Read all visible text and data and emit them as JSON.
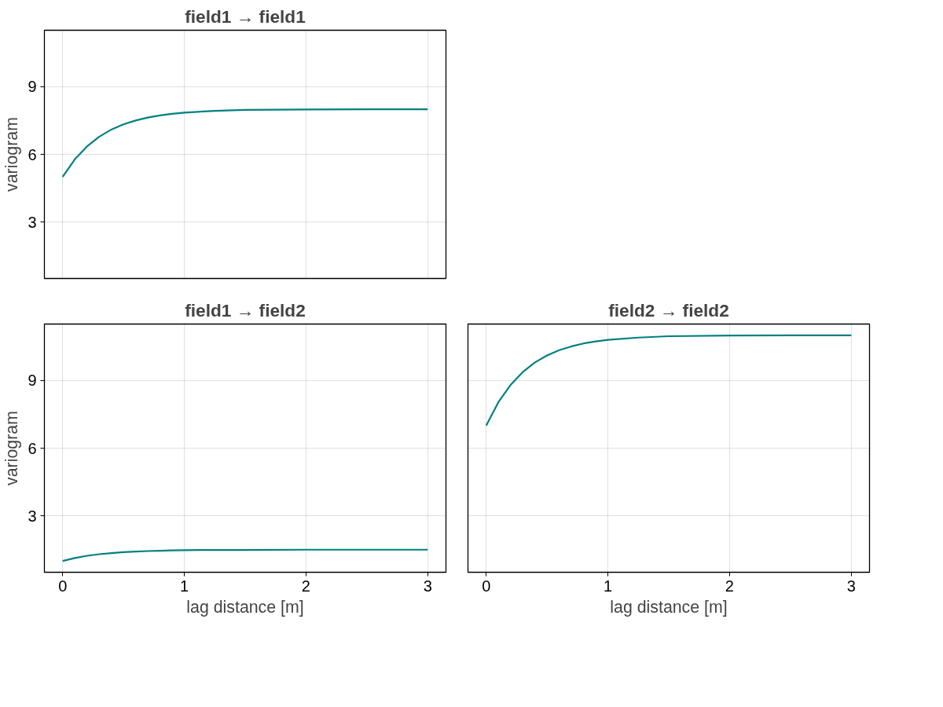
{
  "chart_data": [
    {
      "type": "line",
      "title": "field1 → field1",
      "ylabel": "variogram",
      "x": [
        0,
        0.1,
        0.2,
        0.3,
        0.4,
        0.5,
        0.6,
        0.7,
        0.8,
        0.9,
        1.0,
        1.25,
        1.5,
        2,
        2.5,
        3
      ],
      "xlim": [
        -0.15,
        3.15
      ],
      "ylim": [
        0.5,
        11.5
      ],
      "xticks": [
        0,
        1,
        2,
        3
      ],
      "yticks": [
        3,
        6,
        9
      ],
      "grid": true,
      "tick_labels": "y",
      "series": [
        {
          "color": "#008080",
          "values": [
            5,
            5.78,
            6.35,
            6.78,
            7.1,
            7.33,
            7.5,
            7.63,
            7.73,
            7.8,
            7.85,
            7.93,
            7.97,
            7.99,
            8.0,
            8.0
          ]
        }
      ]
    },
    {
      "type": "line",
      "title": "field1 → field2",
      "xlabel": "lag distance [m]",
      "ylabel": "variogram",
      "x": [
        0,
        0.1,
        0.2,
        0.3,
        0.4,
        0.5,
        0.6,
        0.7,
        0.8,
        0.9,
        1.0,
        1.25,
        1.5,
        2,
        2.5,
        3
      ],
      "xlim": [
        -0.15,
        3.15
      ],
      "ylim": [
        0.5,
        11.5
      ],
      "xticks": [
        0,
        1,
        2,
        3
      ],
      "yticks": [
        3,
        6,
        9
      ],
      "grid": true,
      "series": [
        {
          "color": "#008080",
          "values": [
            1,
            1.13,
            1.23,
            1.3,
            1.35,
            1.39,
            1.42,
            1.44,
            1.45,
            1.47,
            1.48,
            1.49,
            1.49,
            1.5,
            1.5,
            1.5
          ]
        }
      ]
    },
    {
      "type": "line",
      "title": "field2 → field2",
      "xlabel": "lag distance [m]",
      "x": [
        0,
        0.1,
        0.2,
        0.3,
        0.4,
        0.5,
        0.6,
        0.7,
        0.8,
        0.9,
        1.0,
        1.25,
        1.5,
        2,
        2.5,
        3
      ],
      "xlim": [
        -0.15,
        3.15
      ],
      "ylim": [
        0.5,
        11.5
      ],
      "xticks": [
        0,
        1,
        2,
        3
      ],
      "yticks": [
        3,
        6,
        9
      ],
      "grid": true,
      "tick_labels": "x",
      "series": [
        {
          "color": "#008080",
          "values": [
            7,
            8.04,
            8.8,
            9.37,
            9.8,
            10.11,
            10.34,
            10.51,
            10.64,
            10.73,
            10.8,
            10.9,
            10.96,
            10.99,
            11.0,
            11.0
          ]
        }
      ]
    }
  ]
}
